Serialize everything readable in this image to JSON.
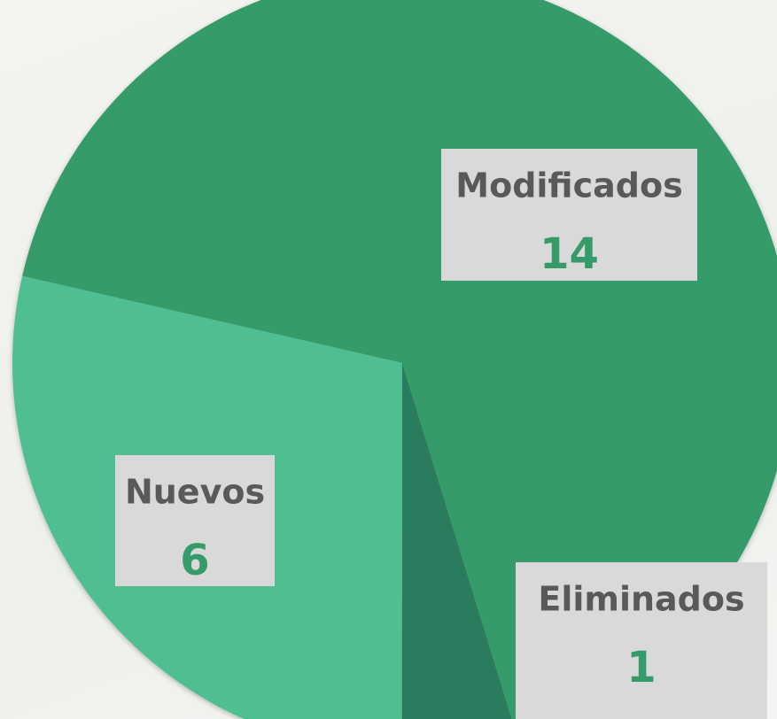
{
  "chart_data": {
    "type": "pie",
    "categories": [
      "Modificados",
      "Nuevos",
      "Eliminados"
    ],
    "values": [
      14,
      6,
      1
    ],
    "colors": [
      "#359b68",
      "#4fbf92",
      "#2a7b5f"
    ]
  }
}
